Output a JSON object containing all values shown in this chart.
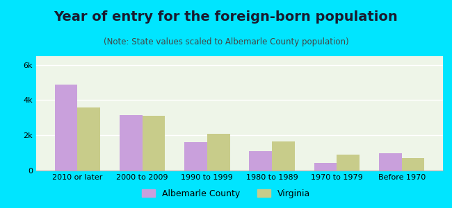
{
  "title": "Year of entry for the foreign-born population",
  "subtitle": "(Note: State values scaled to Albemarle County population)",
  "categories": [
    "2010 or later",
    "2000 to 2009",
    "1990 to 1999",
    "1980 to 1989",
    "1970 to 1979",
    "Before 1970"
  ],
  "albemarle": [
    4900,
    3150,
    1600,
    1100,
    450,
    1000
  ],
  "virginia": [
    3600,
    3100,
    2100,
    1650,
    900,
    700
  ],
  "bar_color_albemarle": "#c9a0dc",
  "bar_color_virginia": "#c8cc8a",
  "background_outer": "#00e5ff",
  "background_inner": "#eef5e8",
  "yticks": [
    0,
    2000,
    4000,
    6000
  ],
  "ytick_labels": [
    "0",
    "2k",
    "4k",
    "6k"
  ],
  "ylim": [
    0,
    6500
  ],
  "bar_width": 0.35,
  "legend_labels": [
    "Albemarle County",
    "Virginia"
  ],
  "title_fontsize": 14,
  "subtitle_fontsize": 8.5,
  "tick_fontsize": 8,
  "legend_fontsize": 9
}
